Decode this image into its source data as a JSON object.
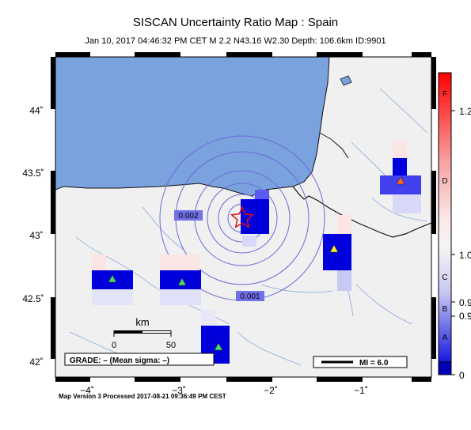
{
  "title": "SISCAN Uncertainty Ratio Map : Spain",
  "subtitle": "Jan 10, 2017 04:46:32 PM CET   M 2.2   N43.16 W2.30   Depth: 106.6km   ID:9901",
  "footer": "Map Version 3 Processed 2017-08-21 09:36:49 PM CEST",
  "lat_ticks": [
    "42˚",
    "42.5˚",
    "43˚",
    "43.5˚",
    "44˚"
  ],
  "lon_ticks": [
    "−4˚",
    "−3˚",
    "−2˚",
    "−1˚"
  ],
  "contour_labels": [
    "0.002",
    "0.001"
  ],
  "scale": {
    "unit": "km",
    "start": "0",
    "end": "50"
  },
  "grade_text": "GRADE: – (Mean sigma: –)",
  "mi_text": "MI = 6.0",
  "colorbar": {
    "ticks": [
      "1.2",
      "1.0",
      "0.9",
      "0.9",
      "0"
    ],
    "letters": [
      "F",
      "D",
      "C",
      "B",
      "A"
    ]
  },
  "colors": {
    "sea": "#7aa2de",
    "land": "#f0f0f0",
    "high": "#ff0000",
    "low": "#0000dd"
  }
}
